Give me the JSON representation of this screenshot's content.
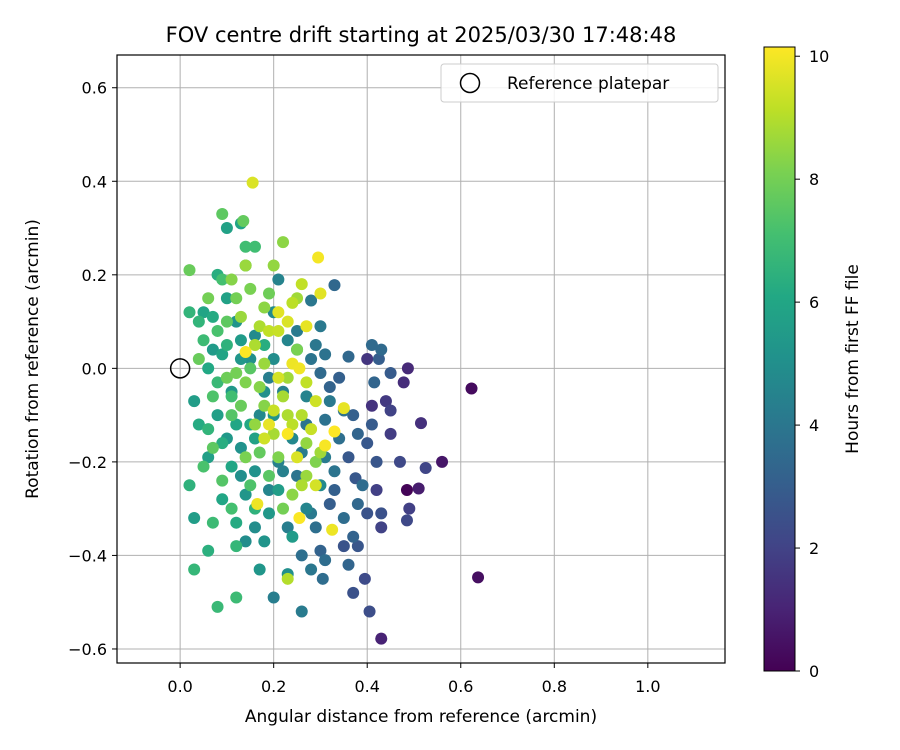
{
  "chart_data": {
    "type": "scatter",
    "title": "FOV centre drift starting at 2025/03/30 17:48:48",
    "xlabel": "Angular distance from reference (arcmin)",
    "ylabel": "Rotation from reference (arcmin)",
    "xlim": [
      -0.135,
      1.165
    ],
    "ylim": [
      -0.63,
      0.67
    ],
    "xticks": [
      0.0,
      0.2,
      0.4,
      0.6,
      0.8,
      1.0
    ],
    "xtick_labels": [
      "0.0",
      "0.2",
      "0.4",
      "0.6",
      "0.8",
      "1.0"
    ],
    "yticks": [
      -0.6,
      -0.4,
      -0.2,
      0.0,
      0.2,
      0.4,
      0.6
    ],
    "ytick_labels": [
      "−0.6",
      "−0.4",
      "−0.2",
      "0.0",
      "0.2",
      "0.4",
      "0.6"
    ],
    "grid": true,
    "legend": {
      "placement": "top-right",
      "label": "Reference platepar"
    },
    "reference_point": {
      "x": 0.0,
      "y": 0.0
    },
    "colorbar": {
      "label": "Hours from first FF file",
      "range": [
        0,
        10.15
      ],
      "ticks": [
        0,
        2,
        4,
        6,
        8,
        10
      ],
      "tick_labels": [
        "0",
        "2",
        "4",
        "6",
        "8",
        "10"
      ],
      "colormap": "viridis"
    },
    "points": [
      {
        "x": 0.485,
        "y": -0.26,
        "c": 0.1
      },
      {
        "x": 0.623,
        "y": -0.043,
        "c": 0.3
      },
      {
        "x": 0.637,
        "y": -0.447,
        "c": 0.4
      },
      {
        "x": 0.56,
        "y": -0.2,
        "c": 0.6
      },
      {
        "x": 0.51,
        "y": -0.257,
        "c": 0.8
      },
      {
        "x": 0.43,
        "y": -0.578,
        "c": 1.0
      },
      {
        "x": 0.487,
        "y": 0.0,
        "c": 1.2
      },
      {
        "x": 0.478,
        "y": -0.03,
        "c": 1.3
      },
      {
        "x": 0.515,
        "y": -0.117,
        "c": 1.4
      },
      {
        "x": 0.41,
        "y": -0.08,
        "c": 1.5
      },
      {
        "x": 0.4,
        "y": 0.02,
        "c": 1.6
      },
      {
        "x": 0.44,
        "y": -0.07,
        "c": 1.7
      },
      {
        "x": 0.45,
        "y": -0.14,
        "c": 1.8
      },
      {
        "x": 0.49,
        "y": -0.3,
        "c": 1.9
      },
      {
        "x": 0.43,
        "y": -0.34,
        "c": 2.0
      },
      {
        "x": 0.525,
        "y": -0.213,
        "c": 2.1
      },
      {
        "x": 0.485,
        "y": -0.325,
        "c": 2.2
      },
      {
        "x": 0.395,
        "y": -0.45,
        "c": 2.3
      },
      {
        "x": 0.405,
        "y": -0.52,
        "c": 2.4
      },
      {
        "x": 0.37,
        "y": -0.48,
        "c": 2.5
      },
      {
        "x": 0.4,
        "y": -0.31,
        "c": 2.6
      },
      {
        "x": 0.35,
        "y": -0.38,
        "c": 2.6
      },
      {
        "x": 0.38,
        "y": -0.38,
        "c": 2.7
      },
      {
        "x": 0.42,
        "y": -0.2,
        "c": 2.7
      },
      {
        "x": 0.36,
        "y": -0.19,
        "c": 2.8
      },
      {
        "x": 0.375,
        "y": -0.235,
        "c": 2.8
      },
      {
        "x": 0.41,
        "y": -0.12,
        "c": 2.9
      },
      {
        "x": 0.45,
        "y": -0.01,
        "c": 2.9
      },
      {
        "x": 0.425,
        "y": 0.02,
        "c": 3.0
      },
      {
        "x": 0.32,
        "y": -0.29,
        "c": 3.0
      },
      {
        "x": 0.34,
        "y": -0.02,
        "c": 3.1
      },
      {
        "x": 0.33,
        "y": -0.26,
        "c": 3.1
      },
      {
        "x": 0.37,
        "y": -0.36,
        "c": 3.2
      },
      {
        "x": 0.3,
        "y": -0.39,
        "c": 3.2
      },
      {
        "x": 0.38,
        "y": -0.14,
        "c": 3.3
      },
      {
        "x": 0.415,
        "y": -0.03,
        "c": 3.3
      },
      {
        "x": 0.36,
        "y": 0.025,
        "c": 3.4
      },
      {
        "x": 0.33,
        "y": 0.178,
        "c": 3.4
      },
      {
        "x": 0.41,
        "y": 0.05,
        "c": 3.5
      },
      {
        "x": 0.43,
        "y": 0.04,
        "c": 3.5
      },
      {
        "x": 0.39,
        "y": -0.25,
        "c": 3.6
      },
      {
        "x": 0.305,
        "y": -0.45,
        "c": 3.6
      },
      {
        "x": 0.26,
        "y": -0.4,
        "c": 3.7
      },
      {
        "x": 0.29,
        "y": -0.34,
        "c": 3.7
      },
      {
        "x": 0.31,
        "y": -0.11,
        "c": 3.8
      },
      {
        "x": 0.35,
        "y": -0.09,
        "c": 3.8
      },
      {
        "x": 0.27,
        "y": -0.12,
        "c": 3.9
      },
      {
        "x": 0.25,
        "y": -0.23,
        "c": 3.9
      },
      {
        "x": 0.29,
        "y": 0.05,
        "c": 4.0
      },
      {
        "x": 0.28,
        "y": 0.145,
        "c": 4.0
      },
      {
        "x": 0.3,
        "y": 0.09,
        "c": 4.1
      },
      {
        "x": 0.32,
        "y": -0.07,
        "c": 4.1
      },
      {
        "x": 0.31,
        "y": -0.19,
        "c": 4.2
      },
      {
        "x": 0.26,
        "y": -0.52,
        "c": 4.2
      },
      {
        "x": 0.2,
        "y": -0.49,
        "c": 4.3
      },
      {
        "x": 0.23,
        "y": -0.34,
        "c": 4.3
      },
      {
        "x": 0.21,
        "y": -0.2,
        "c": 4.4
      },
      {
        "x": 0.22,
        "y": -0.05,
        "c": 4.4
      },
      {
        "x": 0.25,
        "y": 0.04,
        "c": 4.5
      },
      {
        "x": 0.21,
        "y": 0.19,
        "c": 4.5
      },
      {
        "x": 0.27,
        "y": -0.3,
        "c": 4.6
      },
      {
        "x": 0.19,
        "y": -0.26,
        "c": 4.6
      },
      {
        "x": 0.17,
        "y": -0.1,
        "c": 4.7
      },
      {
        "x": 0.24,
        "y": -0.15,
        "c": 4.7
      },
      {
        "x": 0.3,
        "y": -0.25,
        "c": 4.8
      },
      {
        "x": 0.2,
        "y": 0.12,
        "c": 4.8
      },
      {
        "x": 0.16,
        "y": -0.34,
        "c": 4.9
      },
      {
        "x": 0.14,
        "y": -0.37,
        "c": 4.9
      },
      {
        "x": 0.18,
        "y": -0.05,
        "c": 5.0
      },
      {
        "x": 0.15,
        "y": 0.02,
        "c": 5.0
      },
      {
        "x": 0.13,
        "y": -0.17,
        "c": 5.1
      },
      {
        "x": 0.16,
        "y": -0.22,
        "c": 5.1
      },
      {
        "x": 0.2,
        "y": -0.1,
        "c": 5.2
      },
      {
        "x": 0.12,
        "y": 0.1,
        "c": 5.2
      },
      {
        "x": 0.17,
        "y": -0.43,
        "c": 5.3
      },
      {
        "x": 0.14,
        "y": -0.27,
        "c": 5.3
      },
      {
        "x": 0.1,
        "y": -0.15,
        "c": 5.4
      },
      {
        "x": 0.11,
        "y": -0.05,
        "c": 5.4
      },
      {
        "x": 0.13,
        "y": 0.06,
        "c": 5.5
      },
      {
        "x": 0.07,
        "y": 0.04,
        "c": 5.5
      },
      {
        "x": 0.03,
        "y": -0.07,
        "c": 5.6
      },
      {
        "x": 0.03,
        "y": -0.32,
        "c": 5.6
      },
      {
        "x": 0.06,
        "y": -0.19,
        "c": 5.7
      },
      {
        "x": 0.08,
        "y": -0.1,
        "c": 5.7
      },
      {
        "x": 0.1,
        "y": 0.15,
        "c": 5.8
      },
      {
        "x": 0.1,
        "y": 0.3,
        "c": 5.8
      },
      {
        "x": 0.13,
        "y": 0.31,
        "c": 5.9
      },
      {
        "x": 0.05,
        "y": 0.12,
        "c": 5.9
      },
      {
        "x": 0.09,
        "y": -0.28,
        "c": 6.0
      },
      {
        "x": 0.11,
        "y": -0.21,
        "c": 6.0
      },
      {
        "x": 0.15,
        "y": -0.12,
        "c": 6.1
      },
      {
        "x": 0.06,
        "y": 0.0,
        "c": 6.1
      },
      {
        "x": 0.04,
        "y": -0.12,
        "c": 6.2
      },
      {
        "x": 0.12,
        "y": -0.33,
        "c": 6.2
      },
      {
        "x": 0.18,
        "y": 0.05,
        "c": 6.3
      },
      {
        "x": 0.08,
        "y": 0.2,
        "c": 6.3
      },
      {
        "x": 0.14,
        "y": 0.22,
        "c": 6.4
      },
      {
        "x": 0.06,
        "y": -0.39,
        "c": 6.4
      },
      {
        "x": 0.02,
        "y": -0.25,
        "c": 6.5
      },
      {
        "x": 0.1,
        "y": 0.05,
        "c": 6.5
      },
      {
        "x": 0.04,
        "y": 0.1,
        "c": 6.6
      },
      {
        "x": 0.02,
        "y": 0.12,
        "c": 6.6
      },
      {
        "x": 0.03,
        "y": -0.43,
        "c": 6.7
      },
      {
        "x": 0.08,
        "y": -0.51,
        "c": 6.8
      },
      {
        "x": 0.12,
        "y": -0.49,
        "c": 6.9
      },
      {
        "x": 0.16,
        "y": 0.26,
        "c": 7.0
      },
      {
        "x": 0.14,
        "y": 0.26,
        "c": 7.0
      },
      {
        "x": 0.09,
        "y": 0.19,
        "c": 7.1
      },
      {
        "x": 0.05,
        "y": -0.21,
        "c": 7.2
      },
      {
        "x": 0.07,
        "y": -0.06,
        "c": 7.3
      },
      {
        "x": 0.11,
        "y": -0.1,
        "c": 7.4
      },
      {
        "x": 0.15,
        "y": 0.0,
        "c": 7.5
      },
      {
        "x": 0.09,
        "y": 0.33,
        "c": 7.6
      },
      {
        "x": 0.135,
        "y": 0.315,
        "c": 7.7
      },
      {
        "x": 0.02,
        "y": 0.21,
        "c": 7.8
      },
      {
        "x": 0.19,
        "y": 0.16,
        "c": 7.9
      },
      {
        "x": 0.12,
        "y": 0.15,
        "c": 8.0
      },
      {
        "x": 0.25,
        "y": 0.04,
        "c": 8.1
      },
      {
        "x": 0.21,
        "y": -0.19,
        "c": 8.2
      },
      {
        "x": 0.17,
        "y": -0.04,
        "c": 8.3
      },
      {
        "x": 0.22,
        "y": 0.27,
        "c": 8.4
      },
      {
        "x": 0.2,
        "y": 0.22,
        "c": 8.5
      },
      {
        "x": 0.14,
        "y": 0.22,
        "c": 8.6
      },
      {
        "x": 0.25,
        "y": 0.15,
        "c": 8.7
      },
      {
        "x": 0.22,
        "y": -0.06,
        "c": 8.8
      },
      {
        "x": 0.26,
        "y": -0.25,
        "c": 8.9
      },
      {
        "x": 0.23,
        "y": -0.45,
        "c": 9.0
      },
      {
        "x": 0.24,
        "y": -0.12,
        "c": 9.1
      },
      {
        "x": 0.27,
        "y": -0.03,
        "c": 9.2
      },
      {
        "x": 0.2,
        "y": -0.09,
        "c": 9.3
      },
      {
        "x": 0.18,
        "y": -0.15,
        "c": 9.4
      },
      {
        "x": 0.29,
        "y": -0.25,
        "c": 9.5
      },
      {
        "x": 0.155,
        "y": 0.397,
        "c": 9.6
      },
      {
        "x": 0.3,
        "y": 0.16,
        "c": 9.7
      },
      {
        "x": 0.35,
        "y": -0.085,
        "c": 9.8
      },
      {
        "x": 0.325,
        "y": -0.345,
        "c": 9.9
      },
      {
        "x": 0.295,
        "y": 0.237,
        "c": 10.0
      },
      {
        "x": 0.31,
        "y": -0.165,
        "c": 10.05
      },
      {
        "x": 0.255,
        "y": -0.32,
        "c": 10.1
      },
      {
        "x": 0.14,
        "y": 0.035,
        "c": 10.1
      },
      {
        "x": 0.33,
        "y": -0.135,
        "c": 10.15
      },
      {
        "x": 0.23,
        "y": -0.14,
        "c": 10.1
      },
      {
        "x": 0.165,
        "y": -0.29,
        "c": 9.9
      },
      {
        "x": 0.255,
        "y": 0.0,
        "c": 9.95
      },
      {
        "x": 0.21,
        "y": 0.08,
        "c": 9.3
      },
      {
        "x": 0.24,
        "y": 0.14,
        "c": 9.1
      },
      {
        "x": 0.27,
        "y": 0.09,
        "c": 9.8
      },
      {
        "x": 0.19,
        "y": 0.08,
        "c": 9.2
      },
      {
        "x": 0.16,
        "y": 0.05,
        "c": 8.9
      },
      {
        "x": 0.23,
        "y": -0.02,
        "c": 8.7
      },
      {
        "x": 0.18,
        "y": 0.01,
        "c": 8.6
      },
      {
        "x": 0.16,
        "y": -0.12,
        "c": 8.5
      },
      {
        "x": 0.2,
        "y": -0.14,
        "c": 8.8
      },
      {
        "x": 0.26,
        "y": -0.1,
        "c": 9.0
      },
      {
        "x": 0.18,
        "y": -0.08,
        "c": 8.3
      },
      {
        "x": 0.14,
        "y": -0.03,
        "c": 8.2
      },
      {
        "x": 0.12,
        "y": -0.01,
        "c": 8.0
      },
      {
        "x": 0.1,
        "y": -0.02,
        "c": 7.9
      },
      {
        "x": 0.13,
        "y": -0.08,
        "c": 7.8
      },
      {
        "x": 0.17,
        "y": -0.18,
        "c": 7.7
      },
      {
        "x": 0.19,
        "y": -0.23,
        "c": 7.5
      },
      {
        "x": 0.15,
        "y": -0.25,
        "c": 7.3
      },
      {
        "x": 0.11,
        "y": -0.3,
        "c": 7.1
      },
      {
        "x": 0.22,
        "y": -0.3,
        "c": 8.0
      },
      {
        "x": 0.24,
        "y": -0.27,
        "c": 8.4
      },
      {
        "x": 0.27,
        "y": -0.23,
        "c": 8.6
      },
      {
        "x": 0.29,
        "y": -0.07,
        "c": 9.4
      },
      {
        "x": 0.23,
        "y": 0.1,
        "c": 9.6
      },
      {
        "x": 0.26,
        "y": 0.18,
        "c": 9.2
      },
      {
        "x": 0.18,
        "y": 0.13,
        "c": 8.4
      },
      {
        "x": 0.15,
        "y": 0.17,
        "c": 8.1
      },
      {
        "x": 0.1,
        "y": 0.1,
        "c": 7.6
      },
      {
        "x": 0.08,
        "y": 0.08,
        "c": 7.2
      },
      {
        "x": 0.05,
        "y": 0.06,
        "c": 6.9
      },
      {
        "x": 0.08,
        "y": -0.03,
        "c": 6.8
      },
      {
        "x": 0.06,
        "y": -0.13,
        "c": 6.6
      },
      {
        "x": 0.09,
        "y": -0.16,
        "c": 6.3
      },
      {
        "x": 0.12,
        "y": -0.12,
        "c": 6.0
      },
      {
        "x": 0.16,
        "y": -0.15,
        "c": 5.8
      },
      {
        "x": 0.21,
        "y": -0.26,
        "c": 5.6
      },
      {
        "x": 0.24,
        "y": -0.36,
        "c": 5.5
      },
      {
        "x": 0.18,
        "y": -0.37,
        "c": 5.2
      },
      {
        "x": 0.13,
        "y": -0.23,
        "c": 5.0
      },
      {
        "x": 0.2,
        "y": 0.02,
        "c": 4.9
      },
      {
        "x": 0.23,
        "y": 0.06,
        "c": 4.6
      },
      {
        "x": 0.27,
        "y": -0.06,
        "c": 4.5
      },
      {
        "x": 0.22,
        "y": -0.22,
        "c": 4.4
      },
      {
        "x": 0.26,
        "y": -0.18,
        "c": 4.2
      },
      {
        "x": 0.28,
        "y": -0.31,
        "c": 4.1
      },
      {
        "x": 0.33,
        "y": -0.22,
        "c": 3.9
      },
      {
        "x": 0.35,
        "y": -0.32,
        "c": 3.6
      },
      {
        "x": 0.31,
        "y": 0.03,
        "c": 3.8
      },
      {
        "x": 0.34,
        "y": -0.15,
        "c": 3.7
      },
      {
        "x": 0.38,
        "y": -0.29,
        "c": 3.4
      },
      {
        "x": 0.37,
        "y": -0.1,
        "c": 3.1
      },
      {
        "x": 0.4,
        "y": -0.16,
        "c": 2.8
      },
      {
        "x": 0.43,
        "y": -0.31,
        "c": 2.5
      },
      {
        "x": 0.47,
        "y": -0.2,
        "c": 2.2
      },
      {
        "x": 0.45,
        "y": -0.09,
        "c": 2.0
      },
      {
        "x": 0.42,
        "y": -0.26,
        "c": 1.9
      },
      {
        "x": 0.36,
        "y": -0.42,
        "c": 3.3
      },
      {
        "x": 0.31,
        "y": -0.41,
        "c": 3.6
      },
      {
        "x": 0.28,
        "y": -0.43,
        "c": 4.0
      },
      {
        "x": 0.23,
        "y": -0.44,
        "c": 5.0
      },
      {
        "x": 0.19,
        "y": -0.31,
        "c": 5.4
      },
      {
        "x": 0.16,
        "y": -0.3,
        "c": 6.5
      },
      {
        "x": 0.12,
        "y": -0.38,
        "c": 6.7
      },
      {
        "x": 0.07,
        "y": -0.33,
        "c": 6.9
      },
      {
        "x": 0.09,
        "y": -0.24,
        "c": 7.4
      },
      {
        "x": 0.07,
        "y": -0.17,
        "c": 7.6
      },
      {
        "x": 0.04,
        "y": 0.02,
        "c": 7.8
      },
      {
        "x": 0.06,
        "y": 0.15,
        "c": 8.0
      },
      {
        "x": 0.11,
        "y": 0.19,
        "c": 8.3
      },
      {
        "x": 0.13,
        "y": 0.11,
        "c": 8.6
      },
      {
        "x": 0.17,
        "y": 0.09,
        "c": 8.9
      },
      {
        "x": 0.21,
        "y": 0.12,
        "c": 9.7
      },
      {
        "x": 0.24,
        "y": 0.01,
        "c": 9.9
      },
      {
        "x": 0.21,
        "y": -0.02,
        "c": 9.5
      },
      {
        "x": 0.19,
        "y": -0.12,
        "c": 9.8
      },
      {
        "x": 0.25,
        "y": -0.19,
        "c": 9.6
      },
      {
        "x": 0.28,
        "y": -0.13,
        "c": 9.3
      },
      {
        "x": 0.3,
        "y": -0.18,
        "c": 8.7
      },
      {
        "x": 0.14,
        "y": -0.19,
        "c": 8.1
      },
      {
        "x": 0.11,
        "y": -0.06,
        "c": 7.0
      },
      {
        "x": 0.07,
        "y": 0.11,
        "c": 6.2
      },
      {
        "x": 0.09,
        "y": 0.03,
        "c": 5.9
      },
      {
        "x": 0.13,
        "y": 0.02,
        "c": 5.3
      },
      {
        "x": 0.16,
        "y": 0.07,
        "c": 4.8
      },
      {
        "x": 0.19,
        "y": -0.02,
        "c": 4.3
      },
      {
        "x": 0.25,
        "y": 0.08,
        "c": 4.2
      },
      {
        "x": 0.28,
        "y": 0.02,
        "c": 3.9
      },
      {
        "x": 0.3,
        "y": -0.01,
        "c": 3.5
      },
      {
        "x": 0.32,
        "y": -0.04,
        "c": 3.2
      },
      {
        "x": 0.29,
        "y": -0.2,
        "c": 8.2
      },
      {
        "x": 0.27,
        "y": -0.16,
        "c": 8.5
      },
      {
        "x": 0.23,
        "y": -0.1,
        "c": 8.9
      }
    ]
  }
}
